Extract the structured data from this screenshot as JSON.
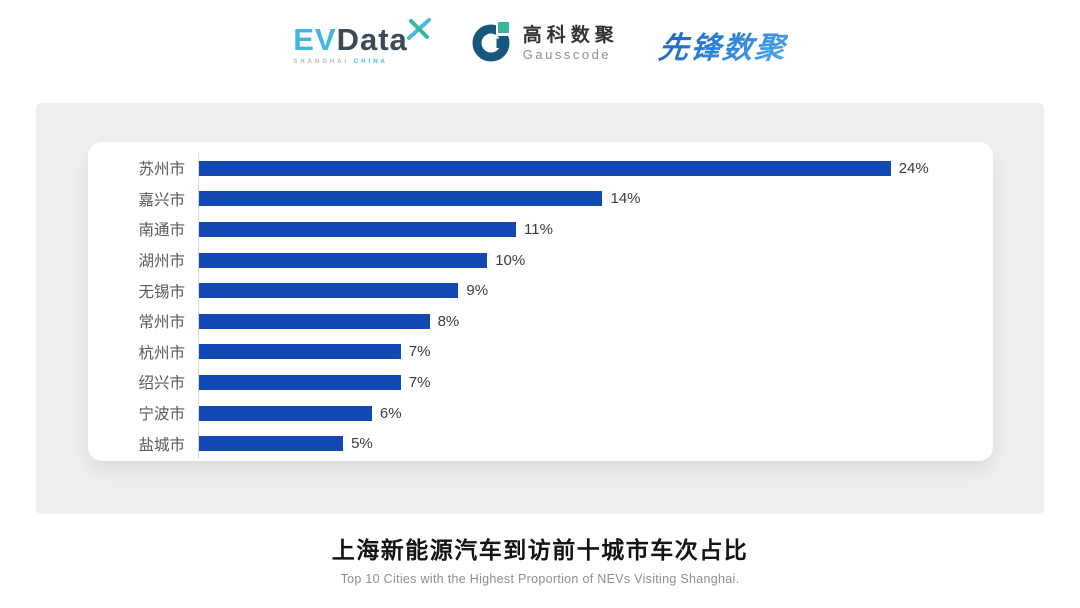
{
  "header": {
    "evdata": {
      "ev": "EV",
      "data": "Data",
      "sub_left": "SHANGHAI",
      "sub_right": "CHINA"
    },
    "gausscode": {
      "cn": "高科数聚",
      "en": "Gausscode"
    },
    "xianfeng": {
      "text": "先锋数聚"
    }
  },
  "chart_data": {
    "type": "bar",
    "orientation": "horizontal",
    "categories": [
      "苏州市",
      "嘉兴市",
      "南通市",
      "湖州市",
      "无锡市",
      "常州市",
      "杭州市",
      "绍兴市",
      "宁波市",
      "盐城市"
    ],
    "values": [
      24,
      14,
      11,
      10,
      9,
      8,
      7,
      7,
      6,
      5
    ],
    "value_labels": [
      "24%",
      "14%",
      "11%",
      "10%",
      "9%",
      "8%",
      "7%",
      "7%",
      "6%",
      "5%"
    ],
    "bar_color": "#1348b2",
    "xlim": [
      0,
      26
    ],
    "grid": "off",
    "legend": "none",
    "title": "上海新能源汽车到访前十城市车次占比",
    "subtitle": "Top 10 Cities with the Highest Proportion of  NEVs Visiting Shanghai."
  },
  "footer": {
    "title": "上海新能源汽车到访前十城市车次占比",
    "subtitle": "Top 10 Cities with the Highest Proportion of  NEVs Visiting Shanghai."
  }
}
